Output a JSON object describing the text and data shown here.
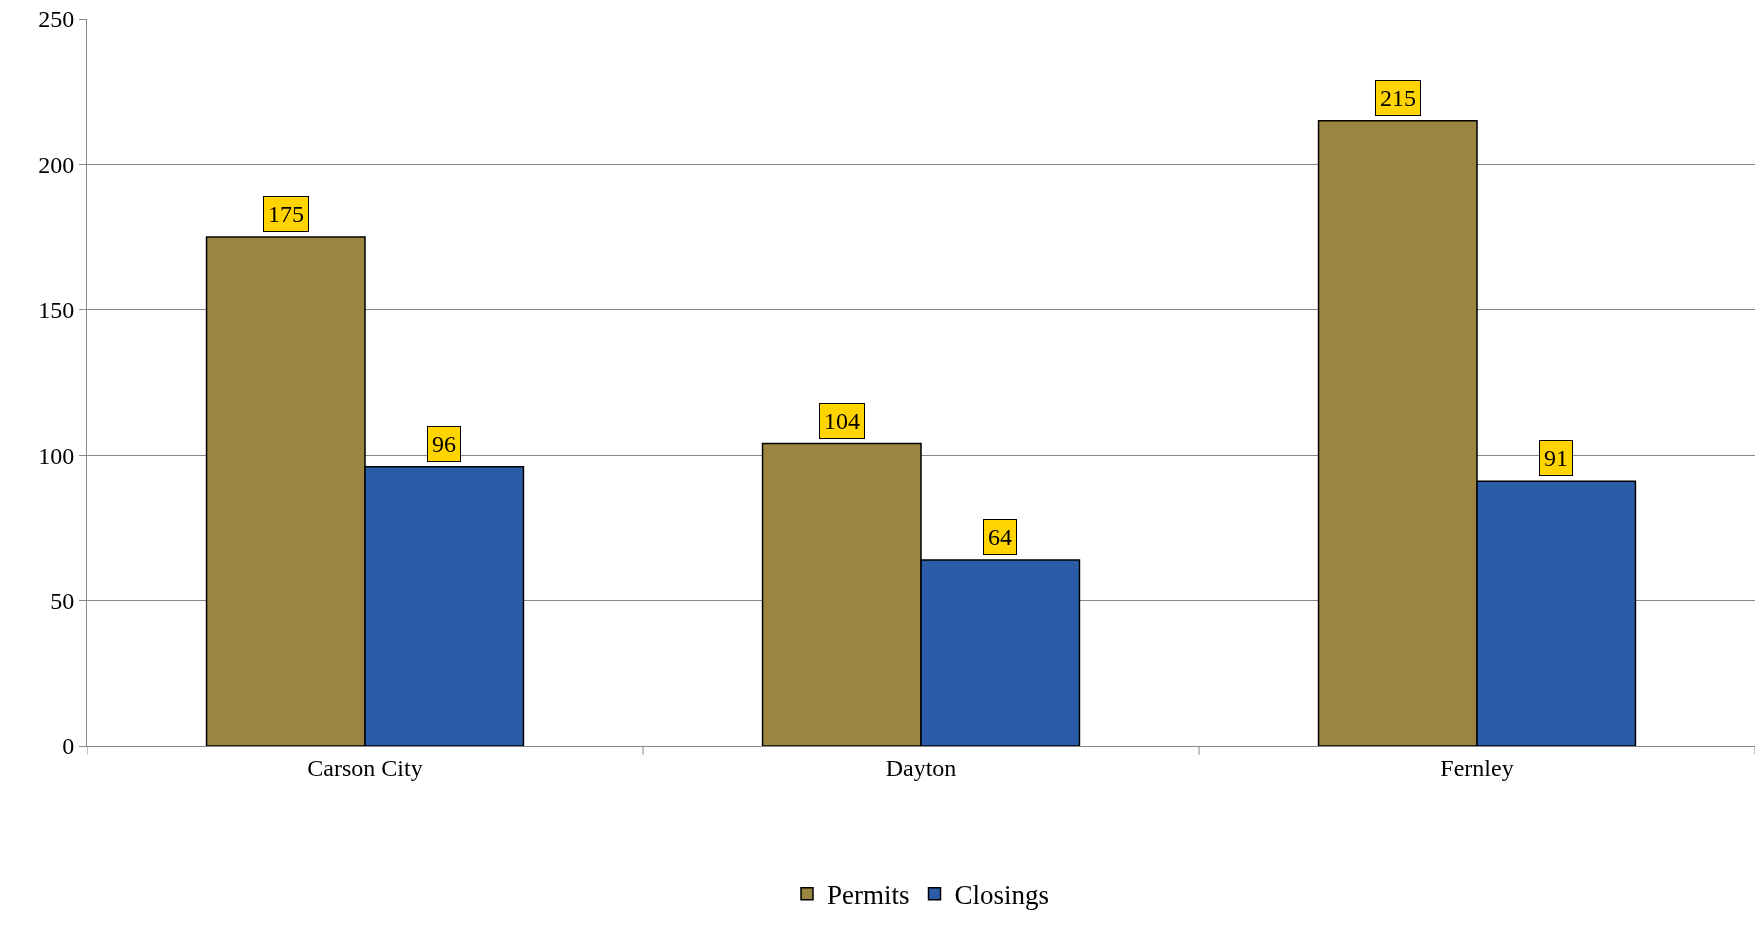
{
  "chart_data": {
    "type": "bar",
    "categories": [
      "Carson City",
      "Dayton",
      "Fernley"
    ],
    "series": [
      {
        "name": "Permits",
        "color": "#9a8640",
        "values": [
          175,
          104,
          215
        ]
      },
      {
        "name": "Closings",
        "color": "#2b5ca8",
        "values": [
          96,
          64,
          91
        ]
      }
    ],
    "ylim": [
      0,
      250
    ],
    "yticks": [
      0,
      50,
      100,
      150,
      200,
      250
    ],
    "grid": "y",
    "legend": "bottom",
    "data_labels": true
  }
}
